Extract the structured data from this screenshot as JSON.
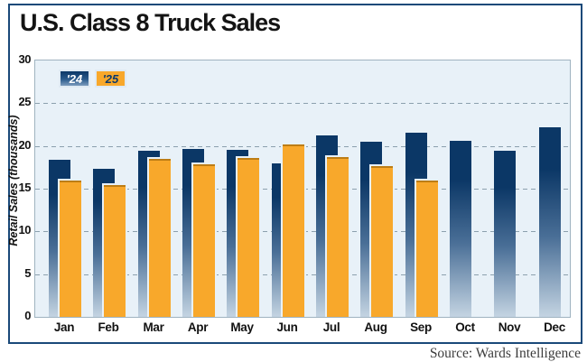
{
  "title": "U.S. Class 8 Truck Sales",
  "source": "Source: Wards Intelligence",
  "legend": [
    {
      "label": "'24",
      "color": "#1c4d80"
    },
    {
      "label": "'25",
      "color": "#f8a82b"
    }
  ],
  "y_axis": {
    "label": "Retail Sales (thousands)",
    "ticks": [
      0,
      5,
      10,
      15,
      20,
      25,
      30
    ]
  },
  "colors": {
    "frame": "#1a4979",
    "plot_bg": "#e8f1f8",
    "grid": "#8ca0ae",
    "bar24_top": "#0b3766",
    "bar24_mid": "#4a6f97",
    "bar24_bottom": "#c4d4e2",
    "bar25_fill": "#f8a82b",
    "bar25_top_edge": "#bd7d15",
    "legend24_text": "#ffffff",
    "legend25_text": "#0d3a6b",
    "chip_border": "#dfeaf3"
  },
  "chart_data": {
    "type": "bar",
    "title": "U.S. Class 8 Truck Sales",
    "categories": [
      "Jan",
      "Feb",
      "Mar",
      "Apr",
      "May",
      "Jun",
      "Jul",
      "Aug",
      "Sep",
      "Oct",
      "Nov",
      "Dec"
    ],
    "series": [
      {
        "name": "'24",
        "values": [
          18.4,
          17.3,
          19.4,
          19.7,
          19.5,
          18.0,
          21.2,
          20.5,
          21.6,
          20.6,
          19.4,
          22.2
        ]
      },
      {
        "name": "'25",
        "values": [
          16.0,
          15.4,
          18.5,
          17.9,
          18.6,
          20.2,
          18.7,
          17.6,
          15.9,
          null,
          null,
          null
        ]
      }
    ],
    "xlabel": "",
    "ylabel": "Retail Sales (thousands)",
    "ylim": [
      0,
      30
    ],
    "grid": "horizontal-dashed",
    "legend_position": "top-left"
  }
}
